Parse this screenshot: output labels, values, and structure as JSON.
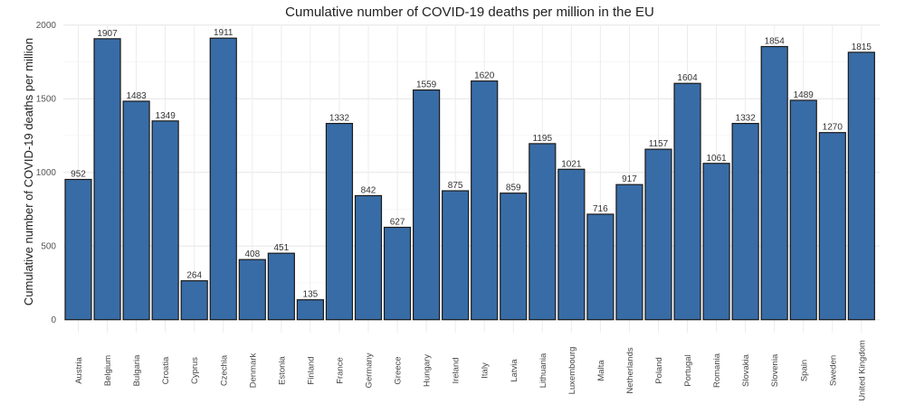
{
  "chart_data": {
    "type": "bar",
    "title": "Cumulative number of COVID-19 deaths per million in the EU",
    "xlabel": "",
    "ylabel": "Cumulative number of COVID-19 deaths per million",
    "ylim": [
      0,
      2000
    ],
    "yticks": [
      0,
      500,
      1000,
      1500,
      2000
    ],
    "grid": true,
    "bar_color": "#386CA6",
    "bar_edge_color": "#1a1a1a",
    "categories": [
      "Austria",
      "Belgium",
      "Bulgaria",
      "Croatia",
      "Cyprus",
      "Czechia",
      "Denmark",
      "Estonia",
      "Finland",
      "France",
      "Germany",
      "Greece",
      "Hungary",
      "Ireland",
      "Italy",
      "Latvia",
      "Lithuania",
      "Luxembourg",
      "Malta",
      "Netherlands",
      "Poland",
      "Portugal",
      "Romania",
      "Slovakia",
      "Slovenia",
      "Spain",
      "Sweden",
      "United Kingdom"
    ],
    "values": [
      952,
      1907,
      1483,
      1349,
      264,
      1911,
      408,
      451,
      135,
      1332,
      842,
      627,
      1559,
      875,
      1620,
      859,
      1195,
      1021,
      716,
      917,
      1157,
      1604,
      1061,
      1332,
      1854,
      1489,
      1270,
      1815
    ]
  }
}
